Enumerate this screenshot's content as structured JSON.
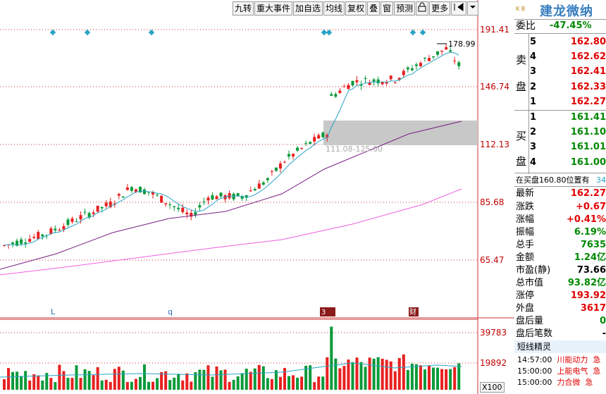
{
  "toolbar": {
    "items": [
      "九转",
      "重大事件",
      "加自选",
      "均线",
      "复权",
      "叠",
      "窗",
      "预测",
      "",
      "更多",
      "",
      ""
    ]
  },
  "stock": {
    "name": "建龙微纳",
    "logo_text": "K B"
  },
  "price_axis": [
    "191.41",
    "146.74",
    "112.13",
    "85.68",
    "65.47"
  ],
  "volume_axis": [
    "39783",
    "19892",
    "X100"
  ],
  "annotations": {
    "high_label": "178.99",
    "gap_label": "111.08-125.00",
    "marker_L": "L",
    "marker_q": "q",
    "marker_3": "3",
    "marker_cai": "财"
  },
  "quote": {
    "weibi_label": "委比",
    "weibi_value": "-47.45%",
    "sell_label": [
      "卖",
      "盘"
    ],
    "buy_label": [
      "买",
      "盘"
    ],
    "sell": [
      {
        "level": "5",
        "price": "162.80"
      },
      {
        "level": "4",
        "price": "162.62"
      },
      {
        "level": "3",
        "price": "162.41"
      },
      {
        "level": "2",
        "price": "162.33"
      },
      {
        "level": "1",
        "price": "162.27"
      }
    ],
    "buy": [
      {
        "level": "1",
        "price": "161.41"
      },
      {
        "level": "2",
        "price": "161.10"
      },
      {
        "level": "3",
        "price": "161.01"
      },
      {
        "level": "4",
        "price": "161.00"
      }
    ],
    "notice": "在买盘160.80位置有",
    "notice_num": "34"
  },
  "stats": [
    {
      "label": "最新",
      "value": "162.27",
      "color": "red"
    },
    {
      "label": "涨跌",
      "value": "+0.67",
      "color": "red"
    },
    {
      "label": "涨幅",
      "value": "+0.41%",
      "color": "red"
    },
    {
      "label": "振幅",
      "value": "6.19%",
      "color": "green"
    },
    {
      "label": "总手",
      "value": "7635",
      "color": "green"
    },
    {
      "label": "金额",
      "value": "1.24亿",
      "color": "green"
    },
    {
      "label": "市盈(静)",
      "value": "73.66",
      "color": "black"
    },
    {
      "label": "总市值",
      "value": "93.82亿",
      "color": "green"
    },
    {
      "label": "涨停",
      "value": "193.92",
      "color": "red"
    },
    {
      "label": "外盘",
      "value": "3617",
      "color": "red"
    },
    {
      "label": "盘后量",
      "value": "0",
      "color": "green"
    },
    {
      "label": "盘后笔数",
      "value": "-",
      "color": "black"
    }
  ],
  "spirit": {
    "title": "短线精灵",
    "news": [
      {
        "time": "14:57:00",
        "name": "川能动力",
        "tag": "急"
      },
      {
        "time": "15:00:00",
        "name": "上能电气",
        "tag": "急"
      },
      {
        "time": "15:00:00",
        "name": "力合微",
        "tag": "急"
      },
      {
        "time": "",
        "name": "",
        "tag": ""
      }
    ]
  },
  "colors": {
    "up": "#e82020",
    "down": "#0a9a3a",
    "ma5": "#2aa4c8",
    "ma20": "#7a1f86",
    "ma60": "#f060e0",
    "grid": "#c33"
  },
  "chart_data": {
    "type": "candlestick",
    "price_axis_ticks": [
      191.41,
      146.74,
      112.13,
      85.68,
      65.47
    ],
    "volume_axis_ticks": [
      39783,
      19892
    ],
    "volume_unit": "X100",
    "last_high": 178.99,
    "gap_zone": [
      111.08,
      125.0
    ],
    "last_close": 162.27
  }
}
